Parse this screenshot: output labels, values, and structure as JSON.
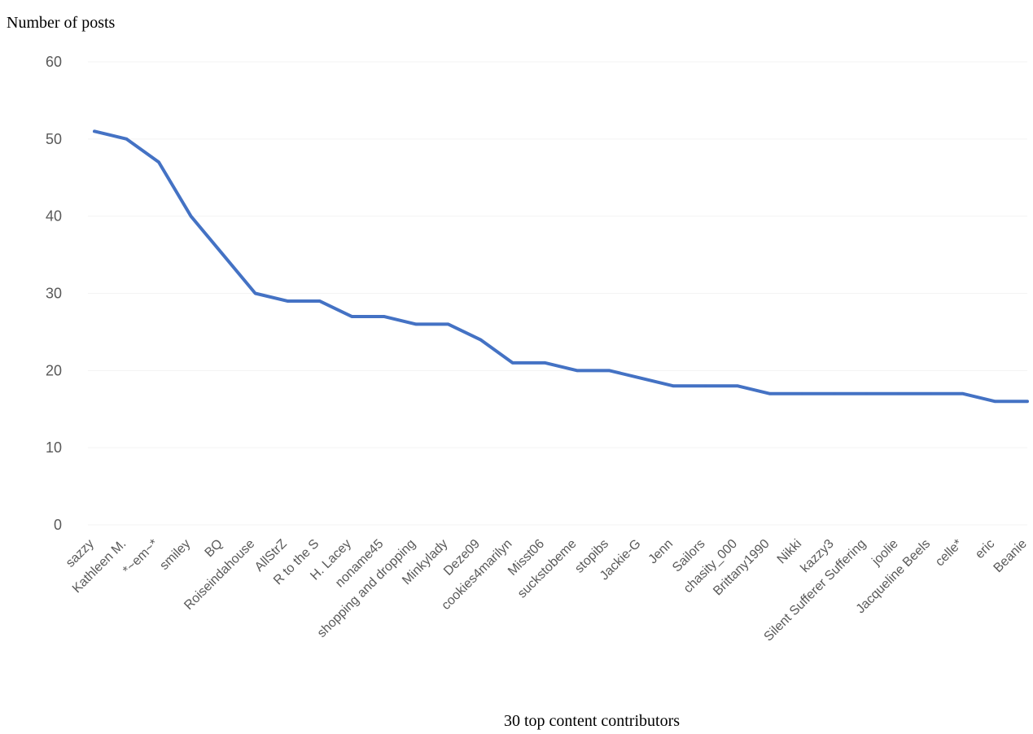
{
  "chart_data": {
    "type": "line",
    "ylabel": "Number of posts",
    "xlabel": "30 top content contributors",
    "ylim": [
      0,
      60
    ],
    "yticks": [
      0,
      10,
      20,
      30,
      40,
      50,
      60
    ],
    "grid": true,
    "legend": "none",
    "series": [
      {
        "color": "#4472C4",
        "values": [
          51,
          50,
          47,
          40,
          35,
          30,
          29,
          29,
          27,
          27,
          26,
          26,
          24,
          21,
          21,
          20,
          20,
          19,
          18,
          18,
          18,
          17,
          17,
          17,
          17,
          17,
          17,
          17,
          16,
          16
        ]
      }
    ],
    "categories": [
      "sazzy",
      "Kathleen M.",
      "*~em~*",
      "smiley",
      "BQ",
      "Roiseindahouse",
      "AllStrZ",
      "R to the S",
      "H. Lacey",
      "noname45",
      "shopping and dropping",
      "Minkylady",
      "Deze09",
      "cookies4marilyn",
      "Misst06",
      "suckstobeme",
      "stopibs",
      "Jackie-G",
      "Jenn",
      "Sailors",
      "chasity_000",
      "Brittany1990",
      "Nikki",
      "kazzy3",
      "Silent Sufferer Suffering",
      "joolie",
      "Jacqueline Beels",
      "celle*",
      "eric",
      "Beanie"
    ]
  }
}
